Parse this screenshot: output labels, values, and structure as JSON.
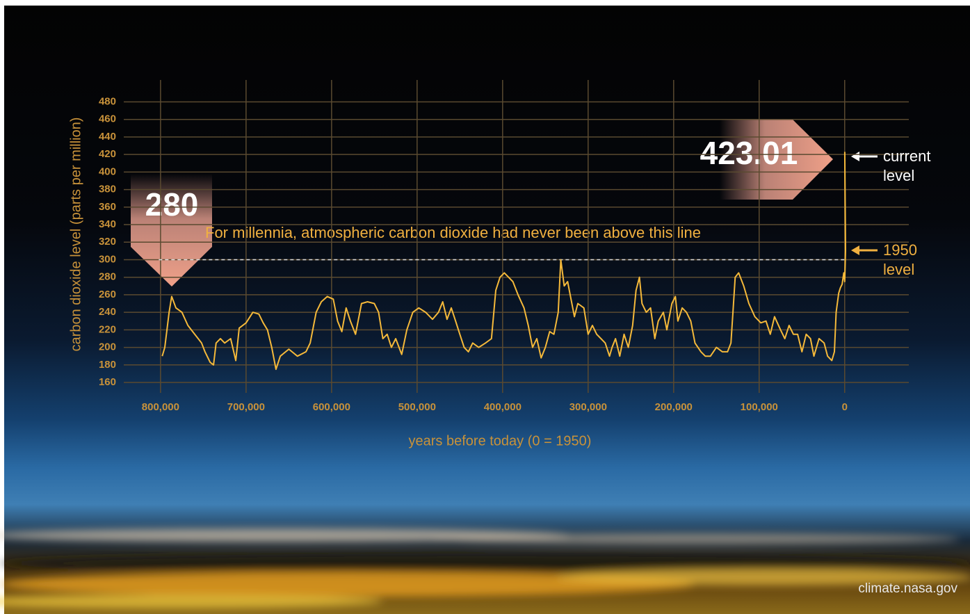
{
  "chart_data": {
    "type": "line",
    "y_label": "carbon dioxide level (parts per million)",
    "x_label": "years before today (0 = 1950)",
    "reference_note": "For millennia, atmospheric carbon dioxide had never been above this line",
    "reference_line": 300,
    "annotations": [
      "current level",
      "1950 level"
    ],
    "callouts": [
      280,
      423.01
    ],
    "color": "#f5b93a",
    "grid": true,
    "xlim": [
      843000,
      -75000
    ],
    "ylim": [
      160,
      505
    ],
    "xticks": [
      {
        "value": 800000,
        "label": "800,000"
      },
      {
        "value": 700000,
        "label": "700,000"
      },
      {
        "value": 600000,
        "label": "600,000"
      },
      {
        "value": 500000,
        "label": "500,000"
      },
      {
        "value": 400000,
        "label": "400,000"
      },
      {
        "value": 300000,
        "label": "300,000"
      },
      {
        "value": 200000,
        "label": "200,000"
      },
      {
        "value": 100000,
        "label": "100,000"
      },
      0
    ],
    "yticks": [
      160,
      180,
      200,
      220,
      240,
      260,
      280,
      300,
      320,
      340,
      360,
      380,
      400,
      420,
      440,
      460,
      480
    ],
    "x": [
      798000,
      795000,
      790000,
      787000,
      782000,
      775000,
      768000,
      760000,
      752000,
      748000,
      742000,
      738000,
      735000,
      730000,
      725000,
      718000,
      712000,
      708000,
      700000,
      692000,
      685000,
      680000,
      675000,
      670000,
      665000,
      660000,
      650000,
      640000,
      630000,
      625000,
      618000,
      612000,
      605000,
      598000,
      593000,
      588000,
      583000,
      578000,
      572000,
      565000,
      558000,
      550000,
      545000,
      540000,
      535000,
      530000,
      525000,
      518000,
      512000,
      505000,
      498000,
      490000,
      482000,
      475000,
      470000,
      465000,
      460000,
      455000,
      450000,
      445000,
      440000,
      435000,
      428000,
      420000,
      413000,
      408000,
      403000,
      398000,
      393000,
      388000,
      382000,
      375000,
      370000,
      365000,
      360000,
      355000,
      350000,
      345000,
      340000,
      335000,
      332000,
      328000,
      324000,
      320000,
      316000,
      312000,
      305000,
      300000,
      295000,
      290000,
      285000,
      280000,
      275000,
      272000,
      268000,
      263000,
      258000,
      253000,
      248000,
      244000,
      240000,
      237000,
      232000,
      227000,
      222000,
      218000,
      212000,
      208000,
      202000,
      198000,
      195000,
      190000,
      185000,
      180000,
      175000,
      168000,
      163000,
      157000,
      150000,
      143000,
      137000,
      133000,
      130000,
      128000,
      124000,
      118000,
      112000,
      105000,
      98000,
      92000,
      87000,
      82000,
      75000,
      70000,
      65000,
      60000,
      55000,
      50000,
      45000,
      40000,
      36000,
      30000,
      24000,
      20000,
      15000,
      12000,
      10000,
      7000,
      5000,
      3000,
      1000,
      0,
      -1000,
      -73
    ],
    "values": [
      190,
      200,
      240,
      258,
      245,
      240,
      225,
      215,
      205,
      195,
      183,
      180,
      205,
      210,
      205,
      210,
      185,
      222,
      228,
      240,
      238,
      228,
      220,
      200,
      175,
      190,
      198,
      190,
      195,
      205,
      240,
      252,
      258,
      255,
      230,
      218,
      245,
      230,
      215,
      250,
      252,
      250,
      240,
      210,
      215,
      200,
      210,
      192,
      220,
      240,
      245,
      240,
      232,
      240,
      252,
      232,
      245,
      230,
      215,
      200,
      195,
      205,
      200,
      205,
      210,
      265,
      280,
      285,
      280,
      275,
      260,
      245,
      225,
      200,
      210,
      188,
      200,
      218,
      215,
      240,
      300,
      270,
      275,
      255,
      235,
      250,
      245,
      215,
      225,
      215,
      210,
      205,
      190,
      200,
      210,
      190,
      215,
      200,
      225,
      265,
      280,
      250,
      240,
      245,
      210,
      230,
      240,
      220,
      250,
      258,
      230,
      245,
      240,
      230,
      205,
      195,
      190,
      190,
      200,
      195,
      195,
      205,
      250,
      280,
      285,
      270,
      250,
      235,
      228,
      230,
      215,
      235,
      220,
      210,
      225,
      215,
      215,
      195,
      215,
      210,
      190,
      210,
      205,
      190,
      185,
      195,
      240,
      262,
      268,
      272,
      285,
      275,
      310,
      423.01
    ]
  },
  "source": "climate.nasa.gov"
}
